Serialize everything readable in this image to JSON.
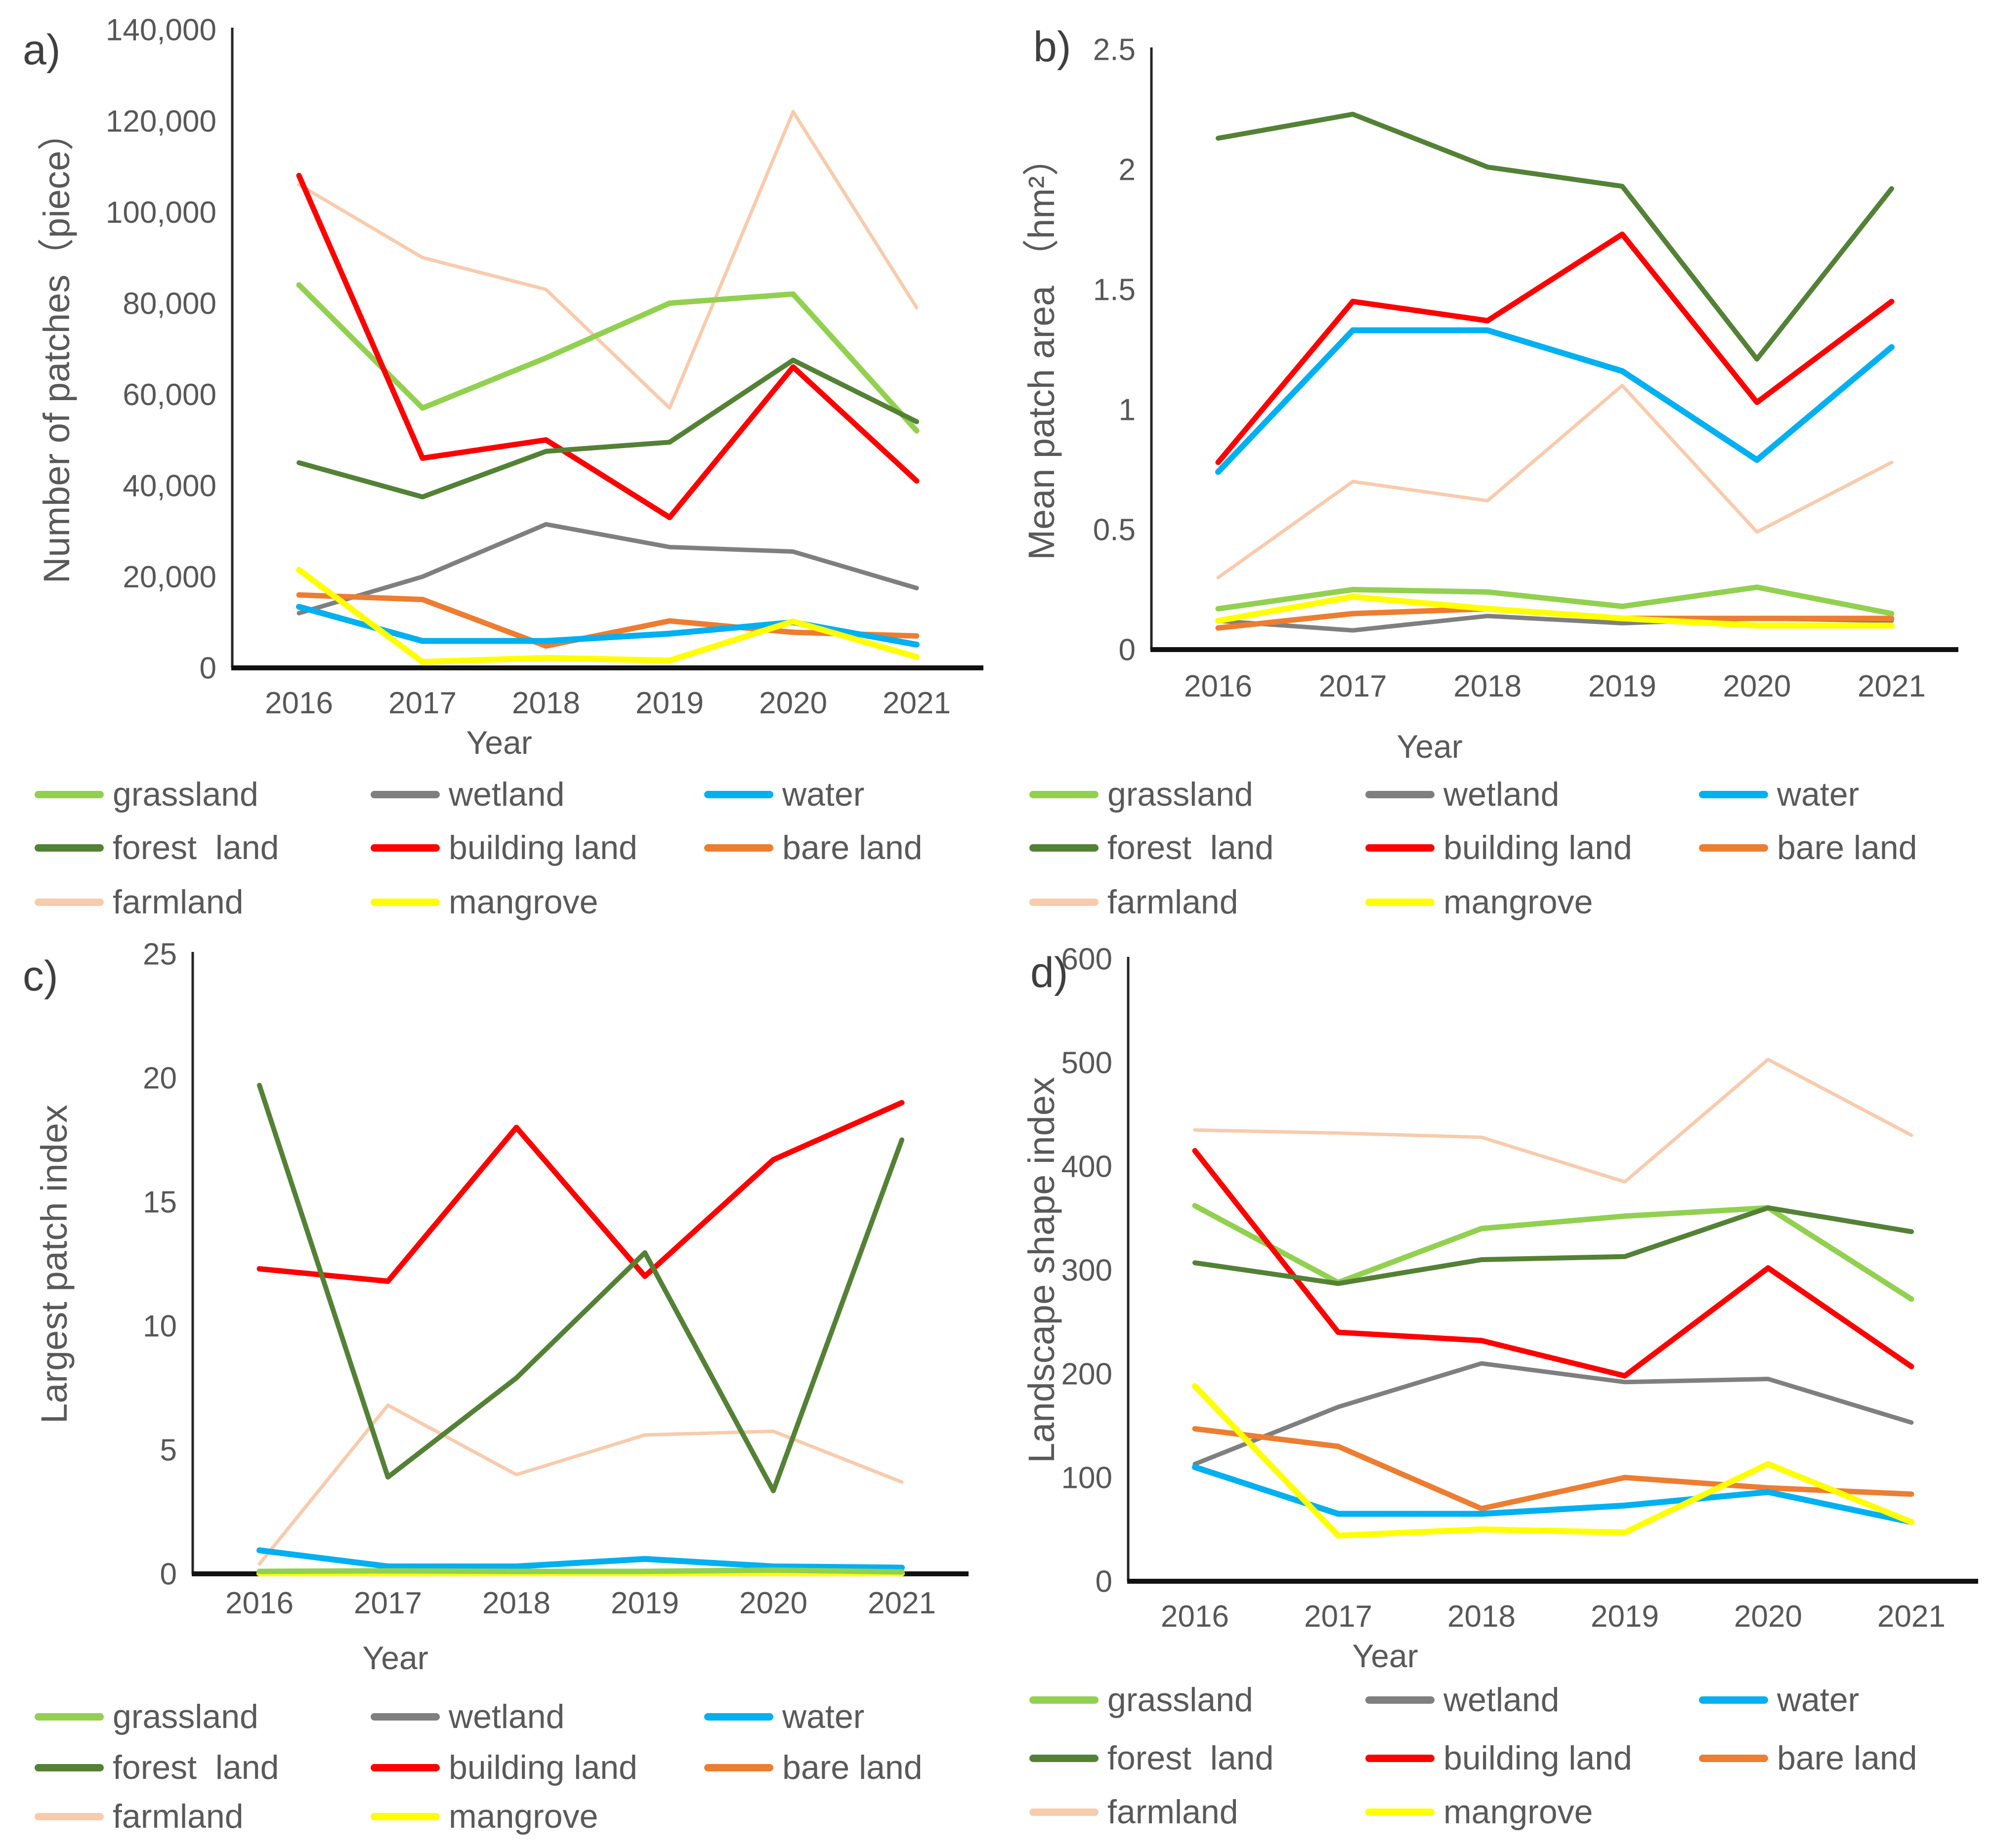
{
  "series_colors": {
    "grassland": "#92d050",
    "wetland": "#7f7f7f",
    "water": "#00b0f0",
    "forest_land": "#538135",
    "building_land": "#ff0000",
    "bare_land": "#ed7d31",
    "farmland": "#f8cbad",
    "mangrove": "#ffff00"
  },
  "axis_color": "#262626",
  "text_color": "#595959",
  "legend_items": [
    {
      "key": "grassland",
      "label": "grassland"
    },
    {
      "key": "wetland",
      "label": "wetland"
    },
    {
      "key": "water",
      "label": "water"
    },
    {
      "key": "forest_land",
      "label": "forest  land"
    },
    {
      "key": "building_land",
      "label": "building land"
    },
    {
      "key": "bare_land",
      "label": "bare land"
    },
    {
      "key": "farmland",
      "label": "farmland"
    },
    {
      "key": "mangrove",
      "label": "mangrove"
    }
  ],
  "chart_data": [
    {
      "id": "a",
      "type": "line",
      "panel_label": "a)",
      "ylabel": "Number of patches（piece）",
      "xlabel": "Year",
      "categories": [
        "2016",
        "2017",
        "2018",
        "2019",
        "2020",
        "2021"
      ],
      "ylim": [
        0,
        140000
      ],
      "yticks": {
        "values": [
          0,
          20000,
          40000,
          60000,
          80000,
          100000,
          120000,
          140000
        ],
        "labels": [
          "0",
          "20,000",
          "40,000",
          "60,000",
          "80,000",
          "100,000",
          "120,000",
          "140,000"
        ]
      },
      "grid": false,
      "legend_position": "bottom",
      "series": [
        {
          "key": "grassland",
          "name": "grassland",
          "values": [
            84000,
            57000,
            68000,
            80000,
            82000,
            52000
          ]
        },
        {
          "key": "wetland",
          "name": "wetland",
          "values": [
            12000,
            20000,
            31500,
            26500,
            25500,
            17500
          ]
        },
        {
          "key": "water",
          "name": "water",
          "values": [
            13400,
            5900,
            5900,
            7500,
            10000,
            5100
          ]
        },
        {
          "key": "forest_land",
          "name": "forest  land",
          "values": [
            45000,
            37500,
            47500,
            49500,
            67500,
            54000
          ]
        },
        {
          "key": "building_land",
          "name": "building land",
          "values": [
            108000,
            46000,
            50000,
            33000,
            66000,
            41000
          ]
        },
        {
          "key": "bare_land",
          "name": "bare land",
          "values": [
            16000,
            15000,
            4800,
            10300,
            7800,
            7000
          ]
        },
        {
          "key": "farmland",
          "name": "farmland",
          "values": [
            106000,
            90000,
            83000,
            57000,
            122000,
            79000
          ]
        },
        {
          "key": "mangrove",
          "name": "mangrove",
          "values": [
            21500,
            1300,
            2200,
            1600,
            10200,
            2400
          ]
        }
      ]
    },
    {
      "id": "b",
      "type": "line",
      "panel_label": "b)",
      "ylabel": "Mean patch area （hm²）",
      "xlabel": "Year",
      "categories": [
        "2016",
        "2017",
        "2018",
        "2019",
        "2020",
        "2021"
      ],
      "ylim": [
        0,
        2.5
      ],
      "yticks": {
        "values": [
          0,
          0.5,
          1,
          1.5,
          2,
          2.5
        ],
        "labels": [
          "0",
          "0.5",
          "1",
          "1.5",
          "2",
          "2.5"
        ]
      },
      "grid": false,
      "legend_position": "bottom",
      "series": [
        {
          "key": "grassland",
          "name": "grassland",
          "values": [
            0.17,
            0.25,
            0.24,
            0.18,
            0.26,
            0.15
          ]
        },
        {
          "key": "wetland",
          "name": "wetland",
          "values": [
            0.12,
            0.08,
            0.14,
            0.11,
            0.13,
            0.12
          ]
        },
        {
          "key": "water",
          "name": "water",
          "values": [
            0.74,
            1.33,
            1.33,
            1.16,
            0.79,
            1.26
          ]
        },
        {
          "key": "forest_land",
          "name": "forest  land",
          "values": [
            2.13,
            2.23,
            2.01,
            1.93,
            1.21,
            1.92
          ]
        },
        {
          "key": "building_land",
          "name": "building land",
          "values": [
            0.78,
            1.45,
            1.37,
            1.73,
            1.03,
            1.45
          ]
        },
        {
          "key": "bare_land",
          "name": "bare land",
          "values": [
            0.09,
            0.15,
            0.17,
            0.13,
            0.13,
            0.13
          ]
        },
        {
          "key": "farmland",
          "name": "farmland",
          "values": [
            0.3,
            0.7,
            0.62,
            1.1,
            0.49,
            0.78
          ]
        },
        {
          "key": "mangrove",
          "name": "mangrove",
          "values": [
            0.12,
            0.22,
            0.17,
            0.13,
            0.1,
            0.1
          ]
        }
      ]
    },
    {
      "id": "c",
      "type": "line",
      "panel_label": "c)",
      "ylabel": "Largest patch index",
      "xlabel": "Year",
      "categories": [
        "2016",
        "2017",
        "2018",
        "2019",
        "2020",
        "2021"
      ],
      "ylim": [
        0,
        25
      ],
      "yticks": {
        "values": [
          0,
          5,
          10,
          15,
          20,
          25
        ],
        "labels": [
          "0",
          "5",
          "10",
          "15",
          "20",
          "25"
        ]
      },
      "grid": false,
      "legend_position": "bottom",
      "series": [
        {
          "key": "grassland",
          "name": "grassland",
          "values": [
            0.1,
            0.12,
            0.1,
            0.1,
            0.15,
            0.08
          ]
        },
        {
          "key": "wetland",
          "name": "wetland",
          "values": [
            0.05,
            0.05,
            0.05,
            0.05,
            0.05,
            0.05
          ]
        },
        {
          "key": "water",
          "name": "water",
          "values": [
            0.95,
            0.3,
            0.3,
            0.6,
            0.3,
            0.25
          ]
        },
        {
          "key": "forest_land",
          "name": "forest  land",
          "values": [
            19.7,
            3.9,
            7.9,
            12.95,
            3.35,
            17.5
          ]
        },
        {
          "key": "building_land",
          "name": "building land",
          "values": [
            12.3,
            11.8,
            18.0,
            12.0,
            16.7,
            19.0
          ]
        },
        {
          "key": "bare_land",
          "name": "bare land",
          "values": [
            0.08,
            0.08,
            0.08,
            0.08,
            0.08,
            0.08
          ]
        },
        {
          "key": "farmland",
          "name": "farmland",
          "values": [
            0.4,
            6.8,
            4.0,
            5.6,
            5.75,
            3.7
          ]
        },
        {
          "key": "mangrove",
          "name": "mangrove",
          "values": [
            0.02,
            0.02,
            0.02,
            0.02,
            0.02,
            0.02
          ]
        }
      ]
    },
    {
      "id": "d",
      "type": "line",
      "panel_label": "d)",
      "ylabel": "Landscape shape index",
      "xlabel": "Year",
      "categories": [
        "2016",
        "2017",
        "2018",
        "2019",
        "2020",
        "2021"
      ],
      "ylim": [
        0,
        600
      ],
      "yticks": {
        "values": [
          0,
          100,
          200,
          300,
          400,
          500,
          600
        ],
        "labels": [
          "0",
          "100",
          "200",
          "300",
          "400",
          "500",
          "600"
        ]
      },
      "grid": false,
      "legend_position": "bottom",
      "series": [
        {
          "key": "grassland",
          "name": "grassland",
          "values": [
            362,
            288,
            340,
            352,
            360,
            272
          ]
        },
        {
          "key": "wetland",
          "name": "wetland",
          "values": [
            113,
            168,
            210,
            192,
            195,
            153
          ]
        },
        {
          "key": "water",
          "name": "water",
          "values": [
            110,
            65,
            65,
            73,
            86,
            57
          ]
        },
        {
          "key": "forest_land",
          "name": "forest  land",
          "values": [
            307,
            287,
            310,
            313,
            360,
            337
          ]
        },
        {
          "key": "building_land",
          "name": "building land",
          "values": [
            415,
            240,
            232,
            198,
            302,
            207
          ]
        },
        {
          "key": "bare_land",
          "name": "bare land",
          "values": [
            147,
            130,
            70,
            100,
            90,
            84
          ]
        },
        {
          "key": "farmland",
          "name": "farmland",
          "values": [
            435,
            432,
            428,
            385,
            503,
            430
          ]
        },
        {
          "key": "mangrove",
          "name": "mangrove",
          "values": [
            188,
            44,
            50,
            47,
            113,
            57
          ]
        }
      ]
    }
  ]
}
